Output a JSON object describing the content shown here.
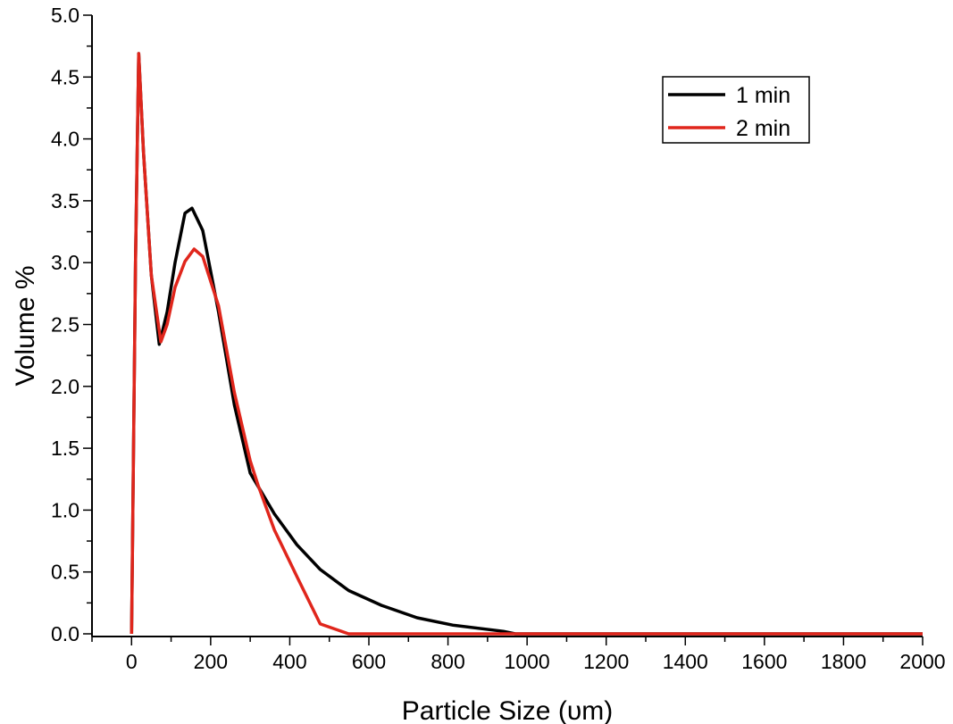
{
  "chart_data": {
    "type": "line",
    "title": "",
    "xlabel": "Particle Size (υm)",
    "ylabel": "Volume %",
    "xlim": [
      -100,
      2000
    ],
    "ylim": [
      0,
      5.0
    ],
    "xticks": [
      "0",
      "200",
      "400",
      "600",
      "800",
      "1000",
      "1200",
      "1400",
      "1600",
      "1800",
      "2000"
    ],
    "yticks": [
      "0.0",
      "0.5",
      "1.0",
      "1.5",
      "2.0",
      "2.5",
      "3.0",
      "3.5",
      "4.0",
      "4.5",
      "5.0"
    ],
    "grid": false,
    "legend_position": "top-right",
    "series": [
      {
        "name": "1 min",
        "color": "#000000",
        "x": [
          0,
          10,
          18,
          30,
          50,
          70,
          90,
          110,
          135,
          153,
          180,
          220,
          260,
          300,
          361,
          418,
          477,
          549,
          632,
          722,
          813,
          940,
          970,
          2000
        ],
        "y": [
          0,
          3.0,
          4.69,
          3.9,
          2.9,
          2.34,
          2.6,
          3.0,
          3.4,
          3.44,
          3.26,
          2.6,
          1.85,
          1.3,
          0.97,
          0.72,
          0.52,
          0.35,
          0.23,
          0.13,
          0.07,
          0.02,
          0,
          0
        ]
      },
      {
        "name": "2 min",
        "color": "#e0261c",
        "x": [
          0,
          10,
          18,
          30,
          50,
          74,
          90,
          110,
          135,
          158,
          180,
          220,
          260,
          300,
          320,
          361,
          420,
          477,
          549,
          2000
        ],
        "y": [
          0,
          3.0,
          4.69,
          3.9,
          2.9,
          2.36,
          2.5,
          2.8,
          3.01,
          3.11,
          3.05,
          2.65,
          1.95,
          1.4,
          1.2,
          0.84,
          0.45,
          0.08,
          0,
          0
        ]
      }
    ]
  }
}
